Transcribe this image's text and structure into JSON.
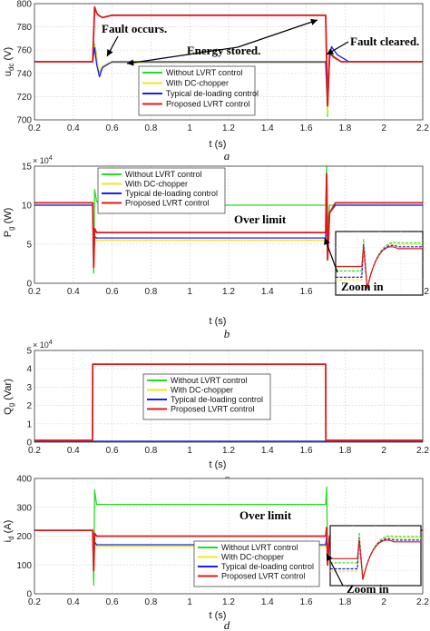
{
  "colors": {
    "without": "#22dd22",
    "dc": "#f0e61e",
    "typical": "#1a1aff",
    "proposed": "#e01818"
  },
  "chart_data": [
    {
      "type": "line",
      "label": "a",
      "ylabel_main": "u",
      "ylabel_sub": "dc",
      "ylabel_unit": " (V)",
      "xlabel": "t (s)",
      "xlim": [
        0.2,
        2.2
      ],
      "ylim": [
        700,
        800
      ],
      "xticks": [
        "0.2",
        "0.4",
        "0.6",
        "0.8",
        "1",
        "1.2",
        "1.4",
        "1.6",
        "1.8",
        "2",
        "2.2"
      ],
      "yticks": [
        "700",
        "720",
        "740",
        "760",
        "780",
        "800"
      ],
      "legend": [
        "Without LVRT control",
        "With DC-chopper",
        "Typical de-loading control",
        "Proposed LVRT control"
      ],
      "legend_position": "center-bottom",
      "grid": true,
      "annotations": [
        "Fault occurs.",
        "Energy stored.",
        "Fault cleared."
      ],
      "series": [
        {
          "name": "Without LVRT control",
          "x": [
            0.2,
            0.5,
            0.51,
            0.52,
            0.53,
            0.55,
            0.58,
            1.7,
            1.71,
            1.72,
            1.74,
            1.78,
            2.2
          ],
          "y": [
            750,
            750,
            765,
            756,
            740,
            745,
            749,
            749,
            703,
            760,
            755,
            750,
            750
          ]
        },
        {
          "name": "With DC-chopper",
          "x": [
            0.2,
            0.5,
            0.51,
            0.52,
            0.53,
            0.55,
            0.58,
            1.7,
            1.71,
            1.72,
            1.74,
            1.78,
            2.2
          ],
          "y": [
            750,
            750,
            764,
            755,
            741,
            746,
            749,
            749,
            705,
            758,
            754,
            750,
            750
          ]
        },
        {
          "name": "Typical de-loading control",
          "x": [
            0.2,
            0.5,
            0.51,
            0.52,
            0.535,
            0.55,
            0.6,
            1.7,
            1.71,
            1.72,
            1.73,
            1.76,
            1.82,
            2.2
          ],
          "y": [
            750,
            750,
            762,
            748,
            737,
            745,
            750,
            750,
            712,
            752,
            763,
            756,
            750,
            750
          ]
        },
        {
          "name": "Proposed LVRT control",
          "x": [
            0.2,
            0.5,
            0.51,
            0.52,
            0.53,
            0.55,
            0.6,
            1.7,
            1.71,
            1.72,
            1.74,
            1.78,
            2.2
          ],
          "y": [
            750,
            750,
            797,
            792,
            790,
            788,
            790,
            790,
            712,
            758,
            754,
            750,
            750
          ]
        }
      ]
    },
    {
      "type": "line",
      "label": "b",
      "ylabel_main": "P",
      "ylabel_sub": "g",
      "ylabel_unit": " (W)",
      "xlabel": "t (s)",
      "exponent": "× 10",
      "exponent_power": "4",
      "xlim": [
        0.2,
        2.2
      ],
      "ylim": [
        0,
        15
      ],
      "xticks": [
        "0.2",
        "0.4",
        "0.6",
        "0.8",
        "1",
        "1.2",
        "1.4",
        "1.6",
        "1.8",
        "2",
        "2.2"
      ],
      "yticks": [
        "0",
        "5",
        "10",
        "15"
      ],
      "legend": [
        "Without LVRT control",
        "With DC-chopper",
        "Typical de-loading control",
        "Proposed LVRT control"
      ],
      "legend_position": "top-center",
      "grid": true,
      "annotations": [
        "Over limit",
        "Zoom in"
      ],
      "series": [
        {
          "name": "Without LVRT control",
          "x": [
            0.2,
            0.5,
            0.505,
            0.51,
            0.52,
            0.55,
            0.6,
            1.7,
            1.705,
            1.71,
            1.72,
            1.75,
            1.8,
            2.2
          ],
          "y": [
            10,
            10,
            1.3,
            12,
            10.5,
            10,
            10,
            10,
            15,
            7,
            10,
            10,
            10,
            10
          ]
        },
        {
          "name": "With DC-chopper",
          "x": [
            0.2,
            0.5,
            0.505,
            0.51,
            0.52,
            0.55,
            1.7,
            1.705,
            1.71,
            1.72,
            1.75,
            1.8,
            2.2
          ],
          "y": [
            10,
            10,
            3,
            6,
            5.5,
            5.5,
            5.5,
            13,
            4,
            9,
            10,
            10,
            10
          ]
        },
        {
          "name": "Typical de-loading control",
          "x": [
            0.2,
            0.5,
            0.505,
            0.51,
            0.52,
            0.55,
            1.7,
            1.705,
            1.71,
            1.72,
            1.75,
            1.8,
            2.2
          ],
          "y": [
            10,
            10,
            3,
            6,
            5.8,
            5.8,
            5.8,
            13,
            4,
            9,
            10,
            10,
            10
          ]
        },
        {
          "name": "Proposed LVRT control",
          "x": [
            0.2,
            0.5,
            0.505,
            0.51,
            0.52,
            0.55,
            1.7,
            1.705,
            1.71,
            1.72,
            1.75,
            1.8,
            2.2
          ],
          "y": [
            10.3,
            10.3,
            2,
            7,
            6.5,
            6.5,
            6.5,
            14,
            3,
            9,
            10.3,
            10.3,
            10.3
          ]
        }
      ]
    },
    {
      "type": "line",
      "label": "c",
      "ylabel_main": "Q",
      "ylabel_sub": "g",
      "ylabel_unit": " (Var)",
      "xlabel": "t (s)",
      "exponent": "× 10",
      "exponent_power": "4",
      "xlim": [
        0.2,
        2.2
      ],
      "ylim": [
        0,
        5
      ],
      "xticks": [
        "0.2",
        "0.4",
        "0.6",
        "0.8",
        "1",
        "1.2",
        "1.4",
        "1.6",
        "1.8",
        "2",
        "2.2"
      ],
      "yticks": [
        "0",
        "1",
        "2",
        "3",
        "4",
        "5"
      ],
      "legend": [
        "Without LVRT control",
        "With DC-chopper",
        "Typical de-loading control",
        "Proposed LVRT control"
      ],
      "legend_position": "center",
      "grid": true,
      "annotations": [],
      "series": [
        {
          "name": "Without LVRT control",
          "x": [
            0.2,
            2.2
          ],
          "y": [
            0.05,
            0.05
          ]
        },
        {
          "name": "With DC-chopper",
          "x": [
            0.2,
            2.2
          ],
          "y": [
            0.05,
            0.05
          ]
        },
        {
          "name": "Typical de-loading control",
          "x": [
            0.2,
            2.2
          ],
          "y": [
            0.05,
            0.05
          ]
        },
        {
          "name": "Proposed LVRT control",
          "x": [
            0.2,
            0.499,
            0.5,
            1.7,
            1.701,
            2.2
          ],
          "y": [
            0.1,
            0.1,
            4.25,
            4.25,
            0.1,
            0.1
          ]
        }
      ]
    },
    {
      "type": "line",
      "label": "d",
      "ylabel_main": "i",
      "ylabel_sub": "d",
      "ylabel_unit": " (A)",
      "xlabel": "t (s)",
      "xlim": [
        0.2,
        2.2
      ],
      "ylim": [
        0,
        400
      ],
      "xticks": [
        "0.2",
        "0.4",
        "0.6",
        "0.8",
        "1",
        "1.2",
        "1.4",
        "1.6",
        "1.8",
        "2",
        "2.2"
      ],
      "yticks": [
        "0",
        "100",
        "200",
        "300",
        "400"
      ],
      "legend": [
        "Without LVRT control",
        "With DC-chopper",
        "Typical de-loading control",
        "Proposed LVRT control"
      ],
      "legend_position": "center-bottom",
      "grid": true,
      "annotations": [
        "Over limit",
        "Zoom in"
      ],
      "series": [
        {
          "name": "Without LVRT control",
          "x": [
            0.2,
            0.5,
            0.505,
            0.51,
            0.52,
            0.55,
            1.7,
            1.705,
            1.71,
            1.72,
            1.75,
            1.8,
            2.2
          ],
          "y": [
            220,
            220,
            30,
            360,
            310,
            310,
            310,
            370,
            130,
            200,
            220,
            220,
            220
          ]
        },
        {
          "name": "With DC-chopper",
          "x": [
            0.2,
            0.5,
            0.505,
            0.51,
            0.52,
            0.55,
            1.7,
            1.705,
            1.71,
            1.72,
            1.75,
            1.8,
            2.2
          ],
          "y": [
            220,
            220,
            100,
            180,
            165,
            165,
            165,
            200,
            120,
            200,
            220,
            220,
            220
          ]
        },
        {
          "name": "Typical de-loading control",
          "x": [
            0.2,
            0.5,
            0.505,
            0.51,
            0.52,
            0.55,
            1.7,
            1.705,
            1.71,
            1.72,
            1.75,
            1.8,
            2.2
          ],
          "y": [
            220,
            220,
            100,
            180,
            170,
            170,
            170,
            200,
            120,
            200,
            220,
            220,
            220
          ]
        },
        {
          "name": "Proposed LVRT control",
          "x": [
            0.2,
            0.5,
            0.505,
            0.51,
            0.52,
            0.55,
            1.7,
            1.705,
            1.71,
            1.72,
            1.75,
            1.8,
            2.2
          ],
          "y": [
            220,
            220,
            80,
            210,
            200,
            200,
            200,
            230,
            100,
            200,
            220,
            220,
            220
          ]
        }
      ]
    }
  ]
}
